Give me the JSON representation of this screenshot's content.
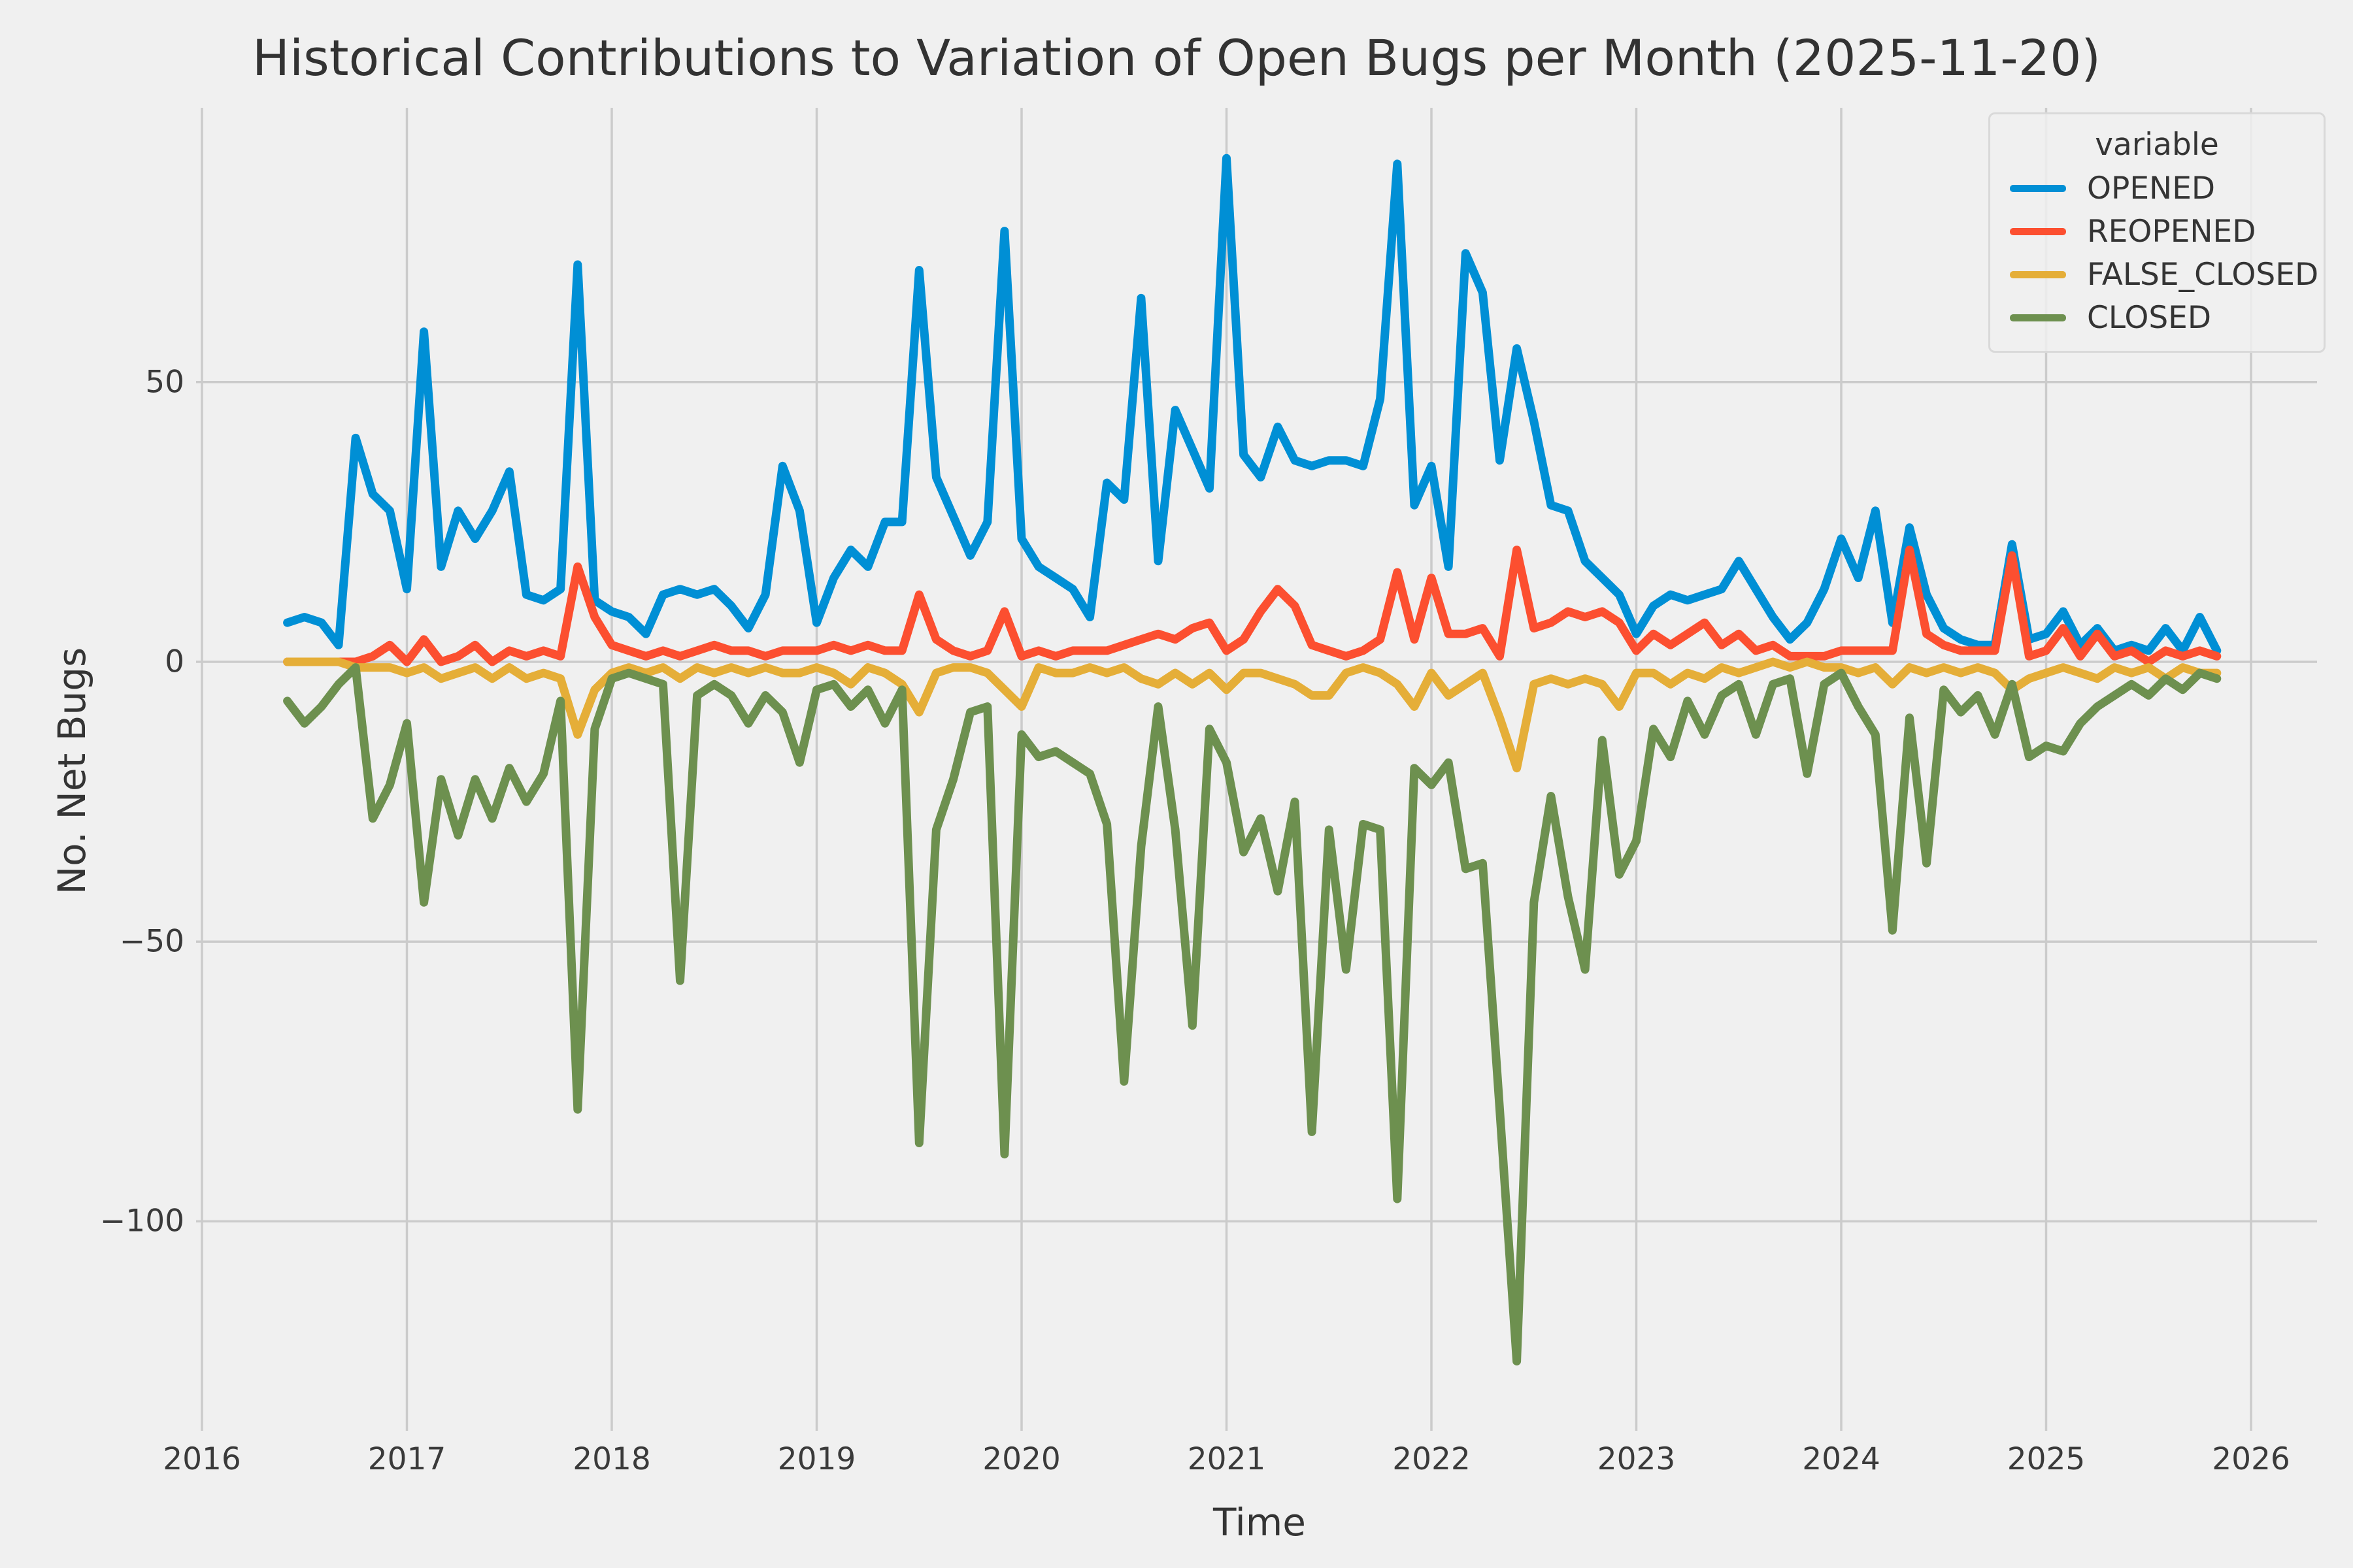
{
  "figure": {
    "title": "Historical Contributions to Variation of Open Bugs per Month (2025-11-20)",
    "background_color": "#f0f0f0",
    "gridline_color": "#cbcbcb"
  },
  "axes": {
    "xlabel": "Time",
    "ylabel": "No. Net Bugs",
    "x_ticks": [
      2016,
      2017,
      2018,
      2019,
      2020,
      2021,
      2022,
      2023,
      2024,
      2025,
      2026
    ],
    "y_ticks": [
      {
        "label": "50",
        "value": 50
      },
      {
        "label": "0",
        "value": 0
      },
      {
        "label": "−50",
        "value": -50
      },
      {
        "label": "−100",
        "value": -100
      }
    ]
  },
  "legend": {
    "title": "variable",
    "items": [
      {
        "label": "OPENED",
        "color": "#008fd5"
      },
      {
        "label": "REOPENED",
        "color": "#fc4f30"
      },
      {
        "label": "FALSE_CLOSED",
        "color": "#e5ae38"
      },
      {
        "label": "CLOSED",
        "color": "#6d904f"
      }
    ]
  },
  "chart_data": {
    "type": "line",
    "title": "Historical Contributions to Variation of Open Bugs per Month (2025-11-20)",
    "xlabel": "Time",
    "ylabel": "No. Net Bugs",
    "frequency": "monthly",
    "x_axis_range": [
      "2016-01",
      "2026-01"
    ],
    "ylim": [
      -137,
      99
    ],
    "grid": true,
    "legend_position": "upper right",
    "months": [
      "2016-06",
      "2016-07",
      "2016-08",
      "2016-09",
      "2016-10",
      "2016-11",
      "2016-12",
      "2017-01",
      "2017-02",
      "2017-03",
      "2017-04",
      "2017-05",
      "2017-06",
      "2017-07",
      "2017-08",
      "2017-09",
      "2017-10",
      "2017-11",
      "2017-12",
      "2018-01",
      "2018-02",
      "2018-03",
      "2018-04",
      "2018-05",
      "2018-06",
      "2018-07",
      "2018-08",
      "2018-09",
      "2018-10",
      "2018-11",
      "2018-12",
      "2019-01",
      "2019-02",
      "2019-03",
      "2019-04",
      "2019-05",
      "2019-06",
      "2019-07",
      "2019-08",
      "2019-09",
      "2019-10",
      "2019-11",
      "2019-12",
      "2020-01",
      "2020-02",
      "2020-03",
      "2020-04",
      "2020-05",
      "2020-06",
      "2020-07",
      "2020-08",
      "2020-09",
      "2020-10",
      "2020-11",
      "2020-12",
      "2021-01",
      "2021-02",
      "2021-03",
      "2021-04",
      "2021-05",
      "2021-06",
      "2021-07",
      "2021-08",
      "2021-09",
      "2021-10",
      "2021-11",
      "2021-12",
      "2022-01",
      "2022-02",
      "2022-03",
      "2022-04",
      "2022-05",
      "2022-06",
      "2022-07",
      "2022-08",
      "2022-09",
      "2022-10",
      "2022-11",
      "2022-12",
      "2023-01",
      "2023-02",
      "2023-03",
      "2023-04",
      "2023-05",
      "2023-06",
      "2023-07",
      "2023-08",
      "2023-09",
      "2023-10",
      "2023-11",
      "2023-12",
      "2024-01",
      "2024-02",
      "2024-03",
      "2024-04",
      "2024-05",
      "2024-06",
      "2024-07",
      "2024-08",
      "2024-09",
      "2024-10",
      "2024-11",
      "2024-12",
      "2025-01",
      "2025-02",
      "2025-03",
      "2025-04",
      "2025-05",
      "2025-06",
      "2025-07",
      "2025-08",
      "2025-09",
      "2025-10",
      "2025-11"
    ],
    "series": [
      {
        "name": "OPENED",
        "color": "#008fd5",
        "values": [
          7,
          8,
          7,
          3,
          40,
          30,
          27,
          13,
          59,
          17,
          27,
          22,
          27,
          34,
          12,
          11,
          13,
          71,
          11,
          9,
          8,
          5,
          12,
          13,
          12,
          13,
          10,
          6,
          12,
          35,
          27,
          7,
          15,
          20,
          17,
          25,
          25,
          70,
          33,
          26,
          19,
          25,
          77,
          22,
          17,
          15,
          13,
          8,
          32,
          29,
          65,
          18,
          45,
          38,
          31,
          90,
          37,
          33,
          42,
          36,
          35,
          36,
          36,
          35,
          47,
          89,
          28,
          35,
          17,
          73,
          66,
          36,
          56,
          43,
          28,
          27,
          18,
          15,
          12,
          5,
          10,
          12,
          11,
          12,
          13,
          18,
          13,
          8,
          4,
          7,
          13,
          22,
          15,
          27,
          7,
          24,
          12,
          6,
          4,
          3,
          3,
          21,
          4,
          5,
          9,
          3,
          6,
          2,
          3,
          2,
          6,
          2,
          8,
          2
        ]
      },
      {
        "name": "REOPENED",
        "color": "#fc4f30",
        "values": [
          0,
          0,
          0,
          0,
          0,
          1,
          3,
          0,
          4,
          0,
          1,
          3,
          0,
          2,
          1,
          2,
          1,
          17,
          8,
          3,
          2,
          1,
          2,
          1,
          2,
          3,
          2,
          2,
          1,
          2,
          2,
          2,
          3,
          2,
          3,
          2,
          2,
          12,
          4,
          2,
          1,
          2,
          9,
          1,
          2,
          1,
          2,
          2,
          2,
          3,
          4,
          5,
          4,
          6,
          7,
          2,
          4,
          9,
          13,
          10,
          3,
          2,
          1,
          2,
          4,
          16,
          4,
          15,
          5,
          5,
          6,
          1,
          20,
          6,
          7,
          9,
          8,
          9,
          7,
          2,
          5,
          3,
          5,
          7,
          3,
          5,
          2,
          3,
          1,
          1,
          1,
          2,
          2,
          2,
          2,
          20,
          5,
          3,
          2,
          2,
          2,
          19,
          1,
          2,
          6,
          1,
          5,
          1,
          2,
          0,
          2,
          1,
          2,
          1
        ]
      },
      {
        "name": "FALSE_CLOSED",
        "color": "#e5ae38",
        "values": [
          0,
          0,
          0,
          0,
          -1,
          -1,
          -1,
          -2,
          -1,
          -3,
          -2,
          -1,
          -3,
          -1,
          -3,
          -2,
          -3,
          -13,
          -5,
          -2,
          -1,
          -2,
          -1,
          -3,
          -1,
          -2,
          -1,
          -2,
          -1,
          -2,
          -2,
          -1,
          -2,
          -4,
          -1,
          -2,
          -4,
          -9,
          -2,
          -1,
          -1,
          -2,
          -5,
          -8,
          -1,
          -2,
          -2,
          -1,
          -2,
          -1,
          -3,
          -4,
          -2,
          -4,
          -2,
          -5,
          -2,
          -2,
          -3,
          -4,
          -6,
          -6,
          -2,
          -1,
          -2,
          -4,
          -8,
          -2,
          -6,
          -4,
          -2,
          -10,
          -19,
          -4,
          -3,
          -4,
          -3,
          -4,
          -8,
          -2,
          -2,
          -4,
          -2,
          -3,
          -1,
          -2,
          -1,
          0,
          -1,
          0,
          -1,
          -1,
          -2,
          -1,
          -4,
          -1,
          -2,
          -1,
          -2,
          -1,
          -2,
          -5,
          -3,
          -2,
          -1,
          -2,
          -3,
          -1,
          -2,
          -1,
          -3,
          -1,
          -2,
          -2
        ]
      },
      {
        "name": "CLOSED",
        "color": "#6d904f",
        "values": [
          -7,
          -11,
          -8,
          -4,
          -1,
          -28,
          -22,
          -11,
          -43,
          -21,
          -31,
          -21,
          -28,
          -19,
          -25,
          -20,
          -7,
          -80,
          -12,
          -3,
          -2,
          -3,
          -4,
          -57,
          -6,
          -4,
          -6,
          -11,
          -6,
          -9,
          -18,
          -5,
          -4,
          -8,
          -5,
          -11,
          -5,
          -86,
          -30,
          -21,
          -9,
          -8,
          -88,
          -13,
          -17,
          -16,
          -18,
          -20,
          -29,
          -75,
          -33,
          -8,
          -30,
          -65,
          -12,
          -18,
          -34,
          -28,
          -41,
          -25,
          -84,
          -30,
          -55,
          -29,
          -30,
          -96,
          -19,
          -22,
          -18,
          -37,
          -36,
          -80,
          -125,
          -43,
          -24,
          -42,
          -55,
          -14,
          -38,
          -32,
          -12,
          -17,
          -7,
          -13,
          -6,
          -4,
          -13,
          -4,
          -3,
          -20,
          -4,
          -2,
          -8,
          -13,
          -48,
          -10,
          -36,
          -5,
          -9,
          -6,
          -13,
          -4,
          -17,
          -15,
          -16,
          -11,
          -8,
          -6,
          -4,
          -6,
          -3,
          -5,
          -2,
          -3
        ]
      }
    ]
  }
}
